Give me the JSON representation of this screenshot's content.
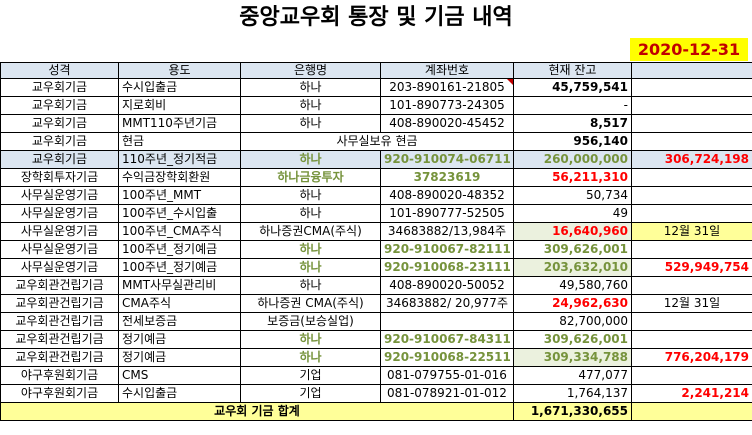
{
  "title": "중앙교우회 통장 및 기금 내역",
  "date": "2020-12-31",
  "headers": [
    "성격",
    "용도",
    "은행명",
    "계좌번호",
    "현재 잔고",
    ""
  ],
  "rows": [
    {
      "type": "교우회기금",
      "use": "수시입출금",
      "bank": "하나",
      "acct": "203-890161-21805",
      "bal": "45,759,541",
      "extra": ""
    },
    {
      "type": "교우회기금",
      "use": "지로회비",
      "bank": "하나",
      "acct": "101-890773-24305",
      "bal": "-",
      "extra": ""
    },
    {
      "type": "교우회기금",
      "use": "MMT110주년기금",
      "bank": "하나",
      "acct": "408-890020-45452",
      "bal": "8,517",
      "extra": ""
    },
    {
      "type": "교우회기금",
      "use": "현금",
      "bank": "사무실보유 현금",
      "acct": "",
      "bal": "956,140",
      "extra": ""
    },
    {
      "type": "교우회기금",
      "use": "110주년_정기적금",
      "bank": "하나",
      "acct": "920-910074-06711",
      "bal": "260,000,000",
      "extra": "306,724,198"
    },
    {
      "type": "장학회투자기금",
      "use": "수익금장학회환원",
      "bank": "하나금융투자",
      "acct": "37823619",
      "bal": "56,211,310",
      "extra": ""
    },
    {
      "type": "사무실운영기금",
      "use": "100주년_MMT",
      "bank": "하나",
      "acct": "408-890020-48352",
      "bal": "50,734",
      "extra": ""
    },
    {
      "type": "사무실운영기금",
      "use": "100주년_수시입출",
      "bank": "하나",
      "acct": "101-890777-52505",
      "bal": "49",
      "extra": ""
    },
    {
      "type": "사무실운영기금",
      "use": "100주년_CMA주식",
      "bank": "하나증권CMA(주식)",
      "acct": "34683882/13,984주",
      "bal": "16,640,960",
      "extra": "12월 31일"
    },
    {
      "type": "사무실운영기금",
      "use": "100주년_정기예금",
      "bank": "하나",
      "acct": "920-910067-82111",
      "bal": "309,626,001",
      "extra": ""
    },
    {
      "type": "사무실운영기금",
      "use": "100주년_정기예금",
      "bank": "하나",
      "acct": "920-910068-23111",
      "bal": "203,632,010",
      "extra": "529,949,754"
    },
    {
      "type": "교우회관건립기금",
      "use": "MMT사무실관리비",
      "bank": "하나",
      "acct": "408-890020-50052",
      "bal": "49,580,760",
      "extra": ""
    },
    {
      "type": "교우회관건립기금",
      "use": "CMA주식",
      "bank": "하나증권 CMA(주식)",
      "acct": "34683882/ 20,977주",
      "bal": "24,962,630",
      "extra": "12월 31일"
    },
    {
      "type": "교우회관건립기금",
      "use": "전세보증금",
      "bank": "보증금(보승실업)",
      "acct": "",
      "bal": "82,700,000",
      "extra": ""
    },
    {
      "type": "교우회관건립기금",
      "use": "정기예금",
      "bank": "하나",
      "acct": "920-910067-84311",
      "bal": "309,626,001",
      "extra": ""
    },
    {
      "type": "교우회관건립기금",
      "use": "정기예금",
      "bank": "하나",
      "acct": "920-910068-22511",
      "bal": "309,334,788",
      "extra": "776,204,179"
    },
    {
      "type": "야구후원회기금",
      "use": "CMS",
      "bank": "기업",
      "acct": "081-079755-01-016",
      "bal": "477,077",
      "extra": ""
    },
    {
      "type": "야구후원회기금",
      "use": "수시입출금",
      "bank": "기업",
      "acct": "081-078921-01-012",
      "bal": "1,764,137",
      "extra": "2,241,214"
    }
  ],
  "total": {
    "label": "교우회 기금 합계",
    "value": "1,671,330,655"
  }
}
